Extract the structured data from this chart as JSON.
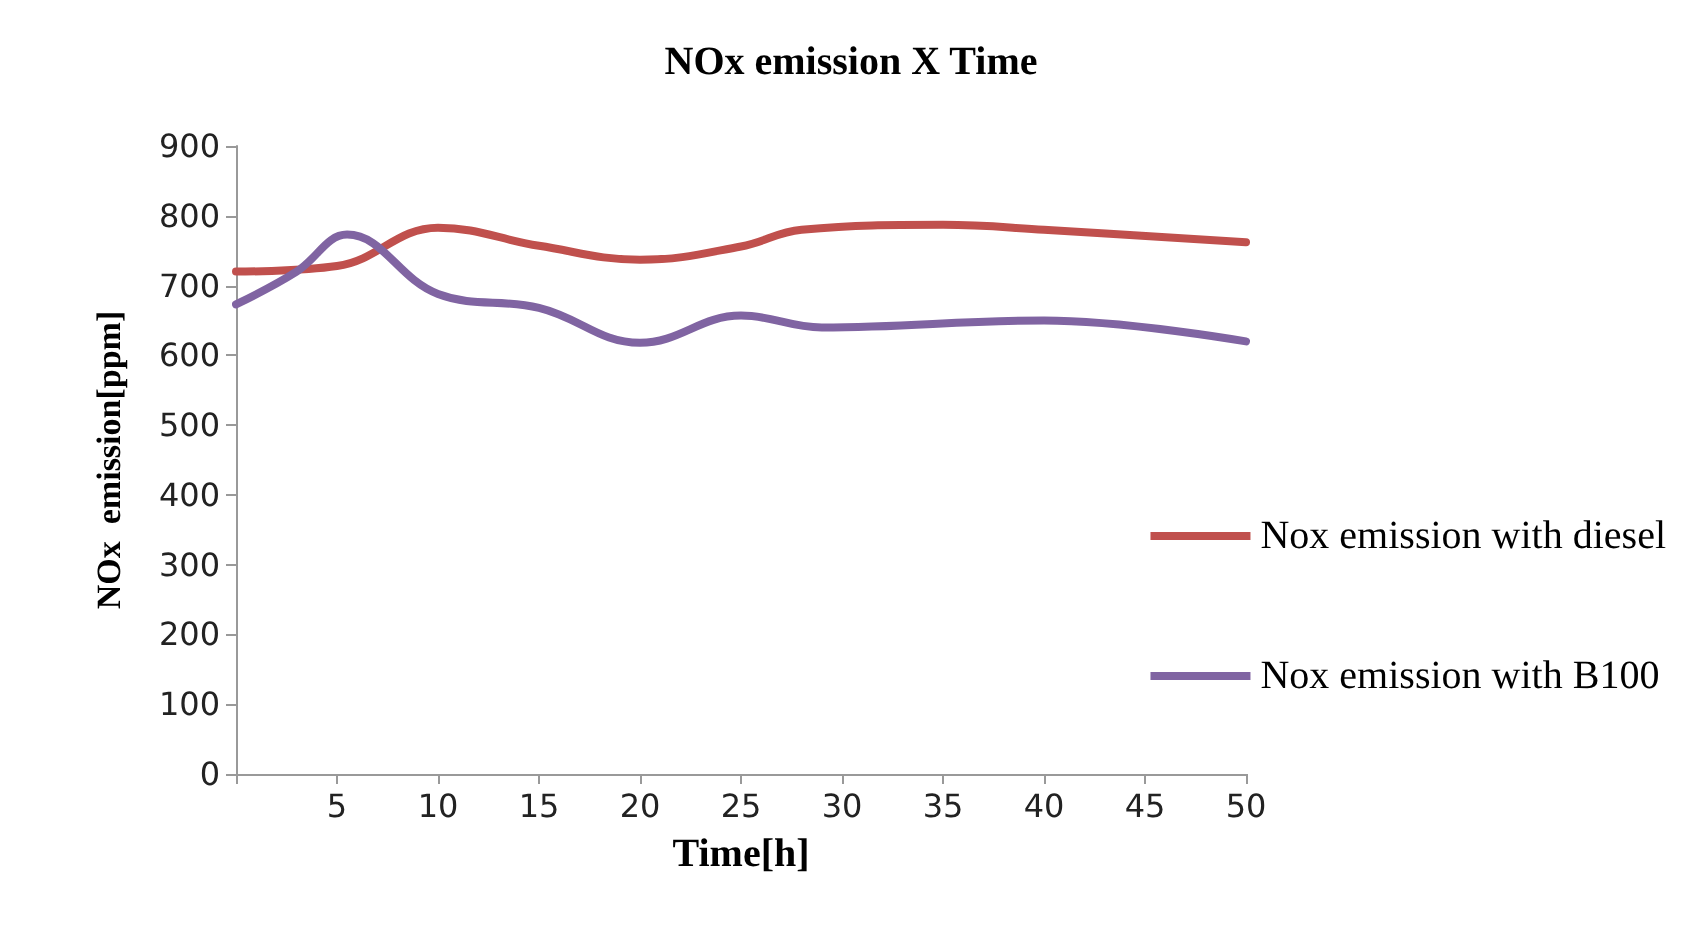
{
  "chart_data": {
    "type": "line",
    "title": "NOx emission X Time",
    "xlabel": "Time[h]",
    "ylabel": "NOx  emission[ppm]",
    "series": [
      {
        "name": "Nox emission with diesel",
        "color": "#c0504d",
        "x": [
          0,
          5,
          10,
          15,
          20,
          25,
          28,
          35,
          40,
          50
        ],
        "values": [
          720,
          728,
          783,
          757,
          737,
          756,
          780,
          787,
          780,
          762
        ]
      },
      {
        "name": "Nox emission with B100",
        "color": "#8064a2",
        "x": [
          0,
          3,
          5.5,
          10,
          15,
          20,
          25,
          29,
          40,
          50
        ],
        "values": [
          673,
          720,
          773,
          688,
          668,
          618,
          657,
          640,
          650,
          620
        ]
      }
    ],
    "xlim": [
      0,
      50
    ],
    "xticks": [
      {
        "value": 0,
        "label": null
      },
      5,
      10,
      15,
      20,
      25,
      30,
      35,
      40,
      45,
      50
    ],
    "ylim": [
      0,
      900
    ],
    "yticks": [
      0,
      100,
      200,
      300,
      400,
      500,
      600,
      700,
      800,
      900
    ],
    "grid": false,
    "legend": "right",
    "marker": "none",
    "line_style": "solid"
  }
}
